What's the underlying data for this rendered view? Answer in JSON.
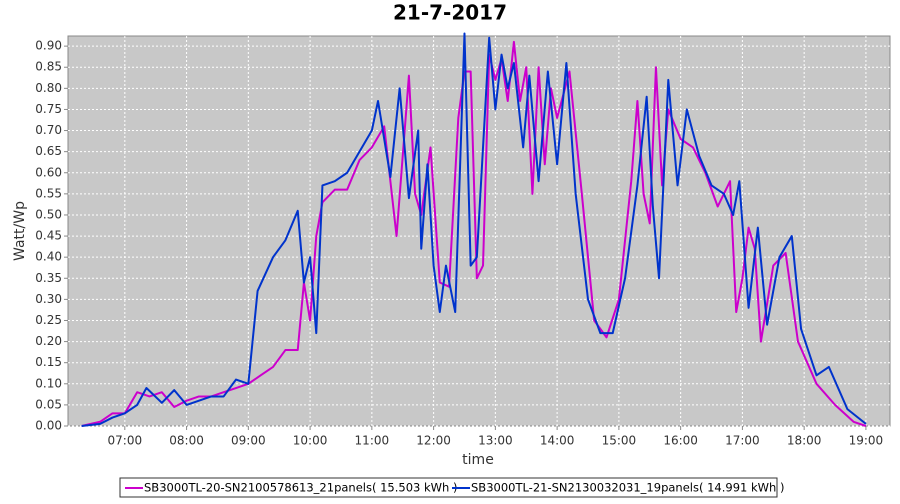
{
  "chart_data": {
    "type": "line",
    "title": "21-7-2017",
    "x_label": "time",
    "y_label": "Watt/Wp",
    "xlim": [
      6.08,
      19.39
    ],
    "ylim": [
      0,
      0.924
    ],
    "grid": true,
    "legend": "bottom",
    "xticks": [
      {
        "value": 7,
        "label": "07:00"
      },
      {
        "value": 8,
        "label": "08:00"
      },
      {
        "value": 9,
        "label": "09:00"
      },
      {
        "value": 10,
        "label": "10:00"
      },
      {
        "value": 11,
        "label": "11:00"
      },
      {
        "value": 12,
        "label": "12:00"
      },
      {
        "value": 13,
        "label": "13:00"
      },
      {
        "value": 14,
        "label": "14:00"
      },
      {
        "value": 15,
        "label": "15:00"
      },
      {
        "value": 16,
        "label": "16:00"
      },
      {
        "value": 17,
        "label": "17:00"
      },
      {
        "value": 18,
        "label": "18:00"
      },
      {
        "value": 19,
        "label": "19:00"
      }
    ],
    "yticks": [
      {
        "value": 0,
        "label": "0.00"
      },
      0.05,
      {
        "value": 0.1,
        "label": "0.10"
      },
      0.15,
      {
        "value": 0.2,
        "label": "0.20"
      },
      0.25,
      {
        "value": 0.3,
        "label": "0.30"
      },
      0.35,
      {
        "value": 0.4,
        "label": "0.40"
      },
      0.45,
      {
        "value": 0.5,
        "label": "0.50"
      },
      0.55,
      {
        "value": 0.6,
        "label": "0.60"
      },
      0.65,
      {
        "value": 0.7,
        "label": "0.70"
      },
      0.75,
      {
        "value": 0.8,
        "label": "0.80"
      },
      0.85,
      {
        "value": 0.9,
        "label": "0.90"
      }
    ],
    "series": [
      {
        "name": "SB3000TL-20-SN2100578613_21panels( 15.503 kWh )",
        "color": "#cc00cc",
        "x": [
          6.3,
          6.6,
          6.8,
          7.0,
          7.2,
          7.4,
          7.6,
          7.8,
          8.0,
          8.2,
          8.4,
          8.6,
          8.8,
          9.0,
          9.2,
          9.4,
          9.6,
          9.8,
          9.9,
          10.0,
          10.1,
          10.2,
          10.4,
          10.6,
          10.8,
          11.0,
          11.2,
          11.4,
          11.6,
          11.7,
          11.8,
          11.95,
          12.1,
          12.25,
          12.4,
          12.5,
          12.6,
          12.7,
          12.8,
          12.9,
          13.0,
          13.1,
          13.2,
          13.3,
          13.4,
          13.5,
          13.6,
          13.7,
          13.8,
          13.9,
          14.0,
          14.2,
          14.4,
          14.6,
          14.8,
          15.0,
          15.2,
          15.3,
          15.4,
          15.5,
          15.6,
          15.7,
          15.8,
          16.0,
          16.2,
          16.4,
          16.6,
          16.8,
          16.9,
          17.0,
          17.1,
          17.2,
          17.3,
          17.5,
          17.7,
          17.9,
          18.2,
          18.5,
          18.8,
          19.0
        ],
        "values": [
          0.0,
          0.01,
          0.03,
          0.03,
          0.08,
          0.07,
          0.08,
          0.045,
          0.06,
          0.07,
          0.07,
          0.08,
          0.09,
          0.1,
          0.12,
          0.14,
          0.18,
          0.18,
          0.34,
          0.25,
          0.45,
          0.53,
          0.56,
          0.56,
          0.63,
          0.66,
          0.71,
          0.45,
          0.83,
          0.55,
          0.5,
          0.66,
          0.34,
          0.33,
          0.73,
          0.84,
          0.84,
          0.35,
          0.38,
          0.88,
          0.82,
          0.87,
          0.77,
          0.91,
          0.77,
          0.85,
          0.55,
          0.85,
          0.62,
          0.8,
          0.73,
          0.84,
          0.55,
          0.25,
          0.21,
          0.3,
          0.58,
          0.77,
          0.55,
          0.48,
          0.85,
          0.57,
          0.75,
          0.68,
          0.66,
          0.6,
          0.52,
          0.58,
          0.27,
          0.35,
          0.47,
          0.42,
          0.2,
          0.38,
          0.41,
          0.2,
          0.1,
          0.05,
          0.01,
          0.0
        ]
      },
      {
        "name": "SB3000TL-21-SN2130032031_19panels( 14.991 kWh )",
        "color": "#0033cc",
        "x": [
          6.3,
          6.6,
          6.8,
          7.0,
          7.2,
          7.35,
          7.6,
          7.8,
          8.0,
          8.2,
          8.4,
          8.6,
          8.8,
          9.0,
          9.15,
          9.4,
          9.6,
          9.8,
          9.9,
          10.0,
          10.1,
          10.2,
          10.4,
          10.6,
          10.8,
          11.0,
          11.1,
          11.3,
          11.45,
          11.6,
          11.75,
          11.8,
          11.9,
          12.0,
          12.1,
          12.2,
          12.35,
          12.5,
          12.6,
          12.7,
          12.9,
          13.0,
          13.1,
          13.2,
          13.3,
          13.45,
          13.55,
          13.7,
          13.85,
          14.0,
          14.15,
          14.3,
          14.5,
          14.7,
          14.9,
          15.1,
          15.3,
          15.45,
          15.55,
          15.65,
          15.8,
          15.95,
          16.1,
          16.3,
          16.5,
          16.7,
          16.85,
          16.95,
          17.1,
          17.25,
          17.4,
          17.6,
          17.8,
          17.95,
          18.2,
          18.4,
          18.7,
          19.0
        ],
        "values": [
          0.0,
          0.005,
          0.02,
          0.03,
          0.05,
          0.09,
          0.055,
          0.085,
          0.05,
          0.06,
          0.07,
          0.07,
          0.11,
          0.1,
          0.32,
          0.4,
          0.44,
          0.51,
          0.34,
          0.4,
          0.22,
          0.57,
          0.58,
          0.6,
          0.65,
          0.7,
          0.77,
          0.59,
          0.8,
          0.54,
          0.7,
          0.42,
          0.62,
          0.38,
          0.27,
          0.38,
          0.27,
          0.93,
          0.38,
          0.4,
          0.92,
          0.75,
          0.88,
          0.8,
          0.86,
          0.66,
          0.83,
          0.58,
          0.84,
          0.62,
          0.86,
          0.55,
          0.3,
          0.22,
          0.22,
          0.35,
          0.57,
          0.78,
          0.52,
          0.35,
          0.82,
          0.57,
          0.75,
          0.64,
          0.57,
          0.55,
          0.5,
          0.58,
          0.28,
          0.47,
          0.24,
          0.4,
          0.45,
          0.23,
          0.12,
          0.14,
          0.04,
          0.005
        ]
      }
    ]
  }
}
